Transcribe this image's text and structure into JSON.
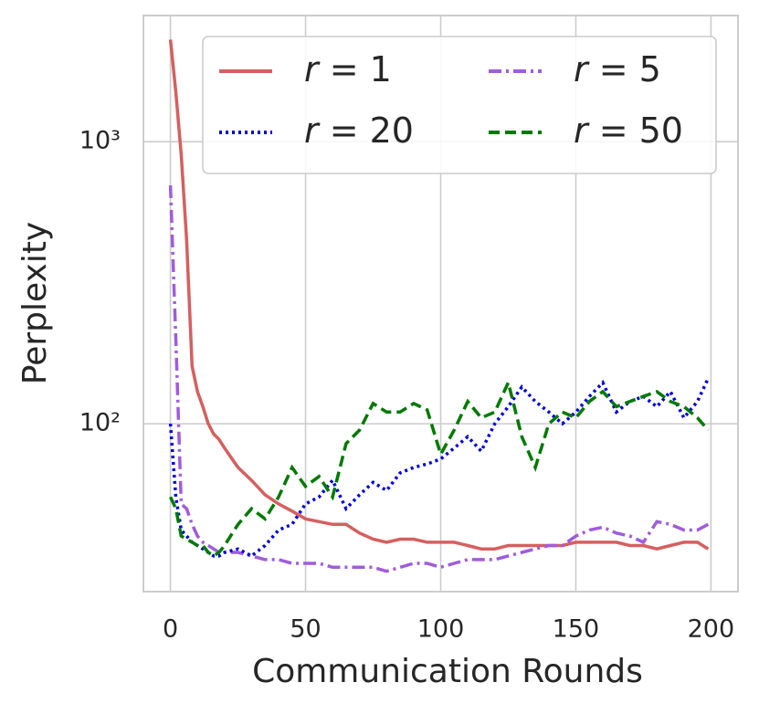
{
  "chart_data": {
    "type": "line",
    "xlabel": "Communication Rounds",
    "ylabel": "Perplexity",
    "x": [
      0,
      2,
      4,
      6,
      8,
      10,
      12,
      14,
      16,
      18,
      20,
      25,
      30,
      35,
      40,
      45,
      50,
      55,
      60,
      65,
      70,
      75,
      80,
      85,
      90,
      95,
      100,
      105,
      110,
      115,
      120,
      125,
      130,
      135,
      140,
      145,
      150,
      155,
      160,
      165,
      170,
      175,
      180,
      185,
      190,
      195,
      199
    ],
    "series": [
      {
        "name": "r = 1",
        "color": "#d65f5f",
        "style": "solid",
        "values": [
          2300,
          1500,
          900,
          450,
          160,
          130,
          115,
          100,
          92,
          88,
          82,
          70,
          63,
          56,
          52,
          49,
          46,
          45,
          44,
          44,
          41,
          39,
          38,
          39,
          39,
          38,
          38,
          38,
          37,
          36,
          36,
          37,
          37,
          37,
          37,
          37,
          38,
          38,
          38,
          38,
          37,
          37,
          36,
          37,
          38,
          38,
          36
        ]
      },
      {
        "name": "r = 5",
        "color": "#a05cdc",
        "style": "dashdot",
        "values": [
          700,
          200,
          52,
          50,
          44,
          40,
          38,
          37,
          36,
          35,
          35,
          35,
          34,
          33,
          33,
          32,
          32,
          32,
          31,
          31,
          31,
          31,
          30,
          31,
          32,
          32,
          31,
          32,
          33,
          33,
          33,
          34,
          35,
          36,
          37,
          37,
          40,
          42,
          43,
          41,
          40,
          38,
          45,
          44,
          42,
          42,
          44
        ]
      },
      {
        "name": "r = 20",
        "color": "#0000e0",
        "style": "dotted",
        "values": [
          100,
          55,
          42,
          40,
          38,
          37,
          36,
          35,
          34,
          34,
          35,
          36,
          34,
          37,
          42,
          44,
          52,
          55,
          63,
          50,
          56,
          62,
          58,
          67,
          70,
          72,
          75,
          82,
          90,
          80,
          100,
          115,
          135,
          120,
          110,
          100,
          110,
          125,
          140,
          110,
          120,
          125,
          115,
          130,
          105,
          120,
          145
        ]
      },
      {
        "name": "r = 50",
        "color": "#007a00",
        "style": "dashed",
        "values": [
          55,
          50,
          40,
          39,
          38,
          37,
          37,
          35,
          34,
          35,
          37,
          44,
          50,
          46,
          55,
          70,
          60,
          65,
          55,
          85,
          95,
          118,
          110,
          110,
          118,
          112,
          78,
          95,
          120,
          105,
          110,
          140,
          90,
          70,
          100,
          110,
          105,
          120,
          130,
          115,
          120,
          125,
          130,
          120,
          115,
          105,
          95
        ]
      }
    ],
    "xlim": [
      -10,
      210
    ],
    "xticks": [
      0,
      50,
      100,
      150,
      200
    ],
    "ylim": [
      25.4,
      2800
    ],
    "log_y": true,
    "yticks": [
      {
        "value": 100,
        "label": "10²"
      },
      {
        "value": 1000,
        "label": "10³"
      }
    ],
    "grid": true,
    "legend": "upper right",
    "legend_columns": 2
  }
}
